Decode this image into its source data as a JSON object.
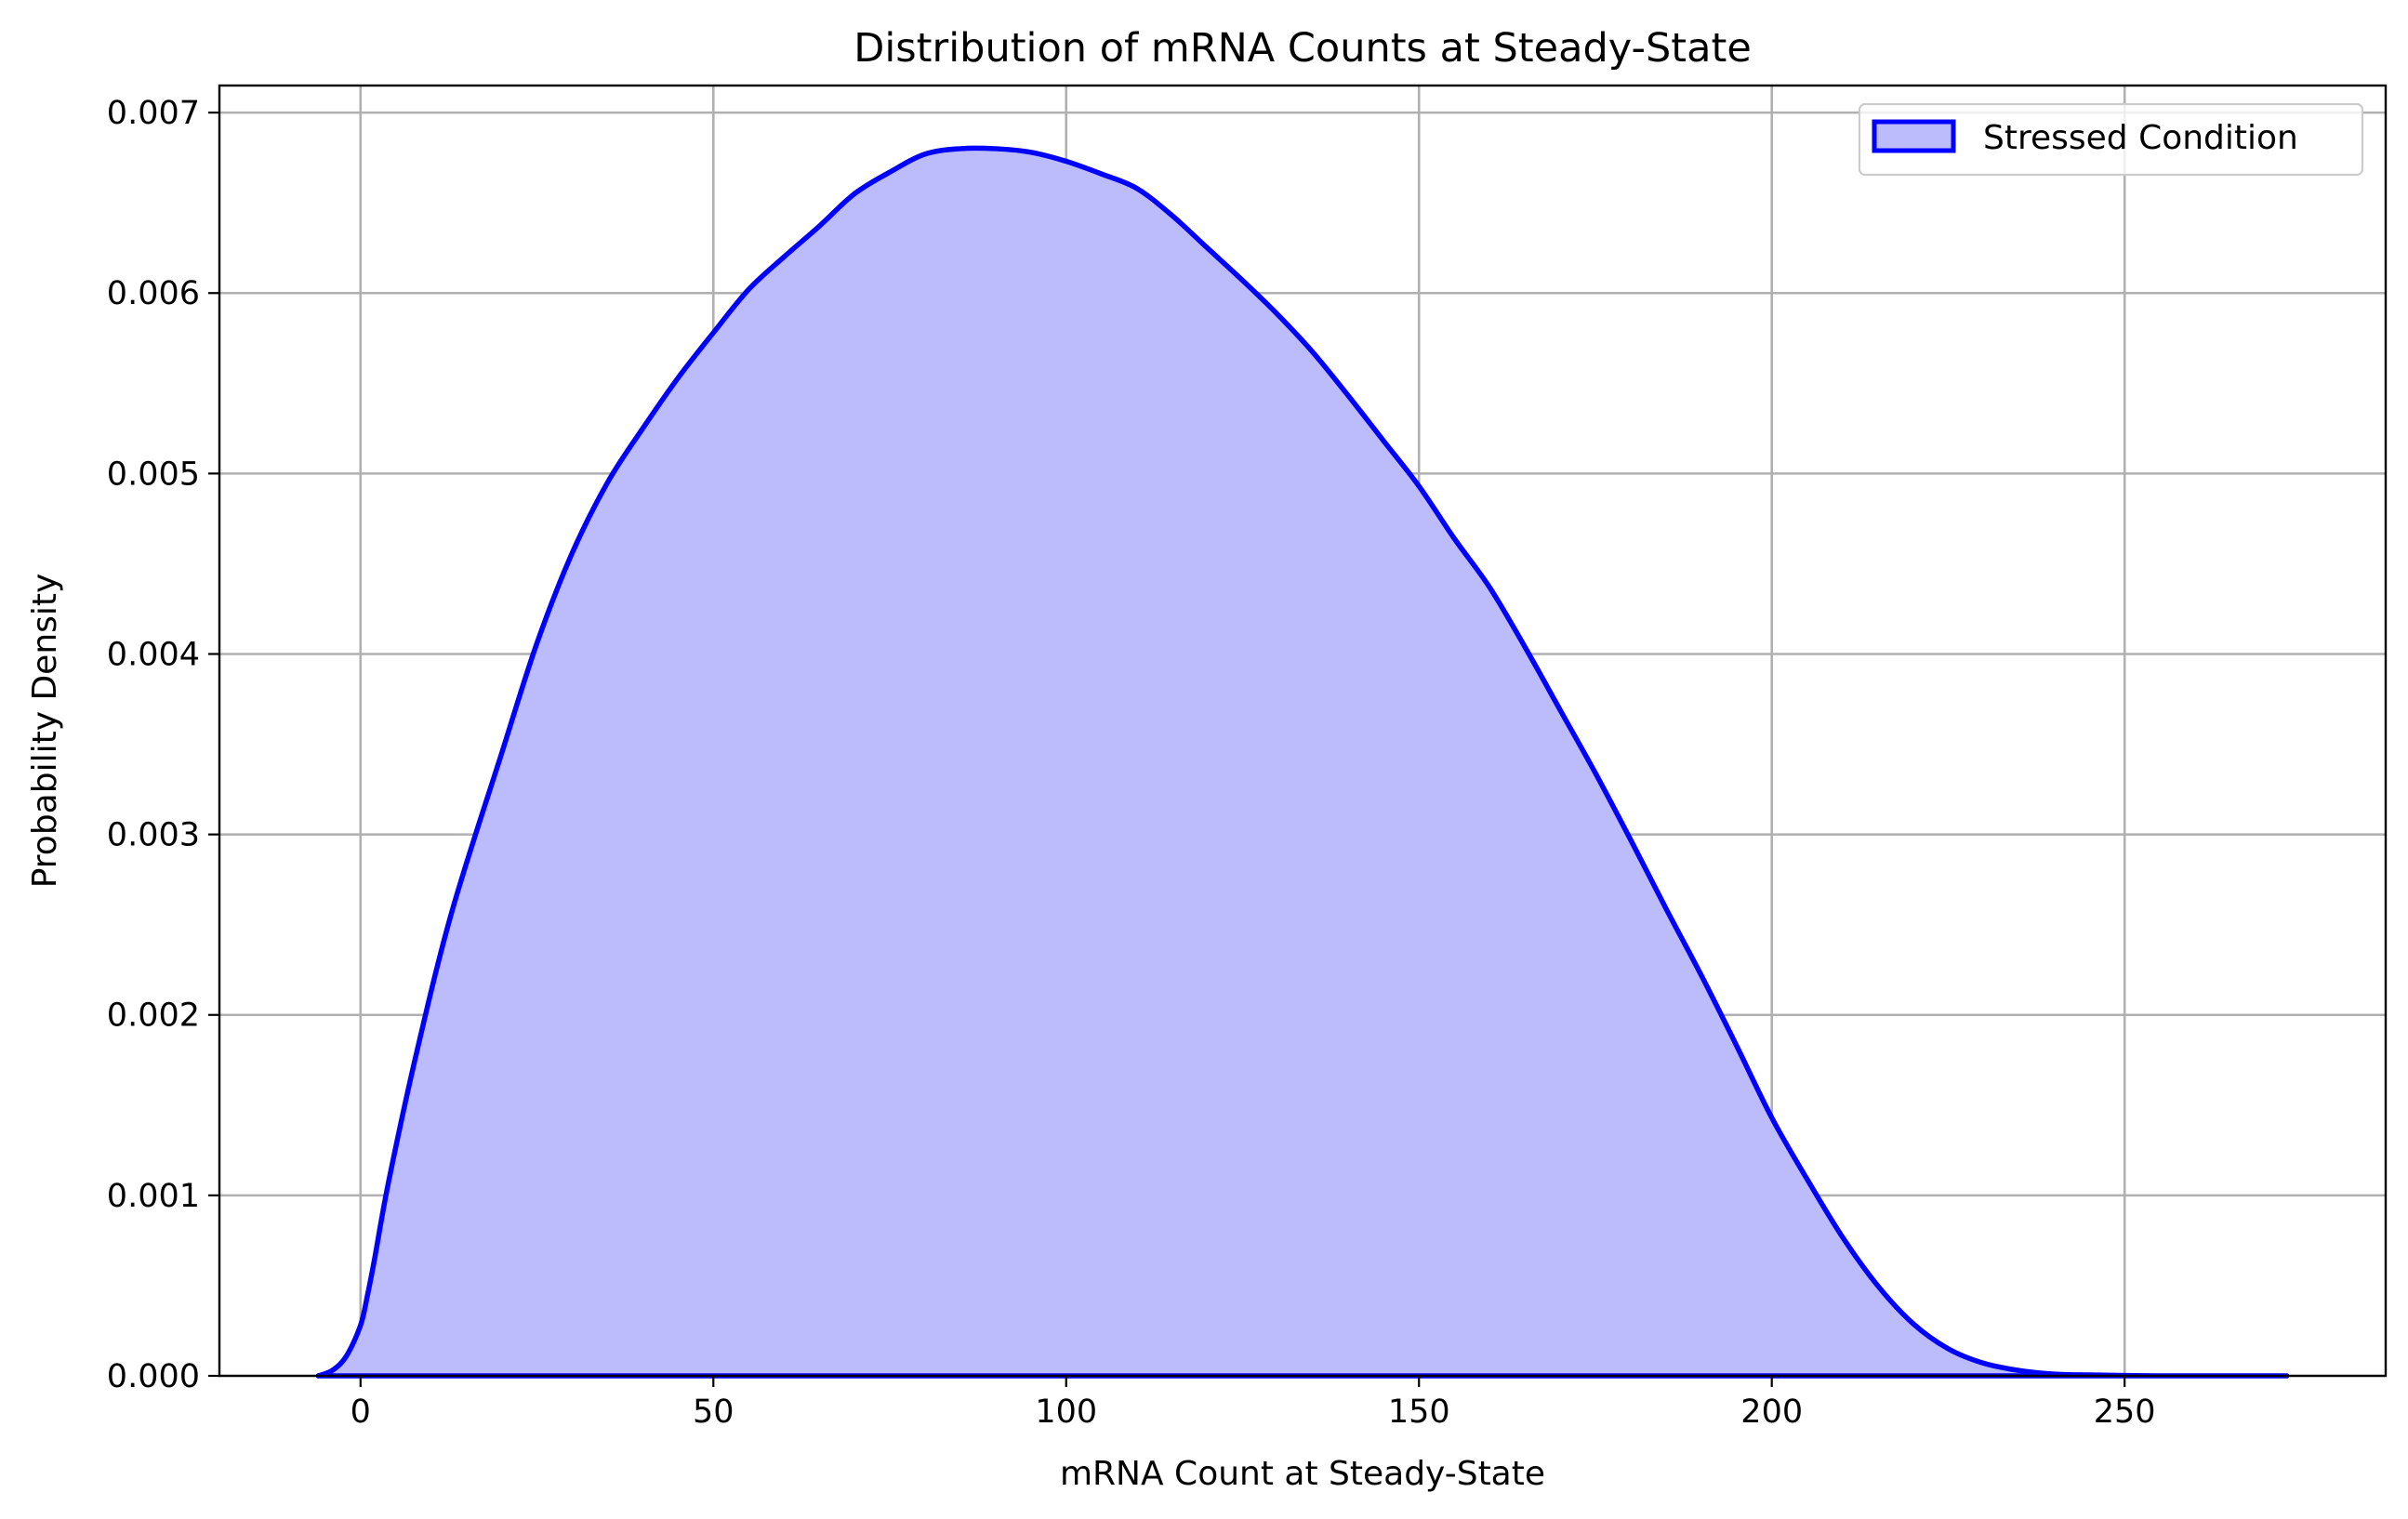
{
  "chart_data": {
    "type": "area",
    "title": "Distribution of mRNA Counts at Steady-State",
    "xlabel": "mRNA Count at Steady-State",
    "ylabel": "Probability Density",
    "xlim": [
      -20,
      287
    ],
    "ylim": [
      0,
      0.00715
    ],
    "xticks": [
      0,
      50,
      100,
      150,
      200,
      250
    ],
    "xtick_labels": [
      "0",
      "50",
      "100",
      "150",
      "200",
      "250"
    ],
    "yticks": [
      0,
      0.001,
      0.002,
      0.003,
      0.004,
      0.005,
      0.006,
      0.007
    ],
    "ytick_labels": [
      "0.000",
      "0.001",
      "0.002",
      "0.003",
      "0.004",
      "0.005",
      "0.006",
      "0.007"
    ],
    "grid": true,
    "legend_position": "top-right",
    "series": [
      {
        "name": "Stressed Condition",
        "line_color": "#0000ff",
        "fill_color": "#bcbcfd",
        "x": [
          -6,
          -4,
          -2,
          0,
          1,
          2,
          4,
          8,
          13,
          20,
          25,
          30,
          35,
          40,
          45,
          50,
          55,
          60,
          65,
          70,
          75,
          80,
          85,
          90,
          95,
          100,
          105,
          110,
          115,
          120,
          125,
          130,
          135,
          140,
          145,
          150,
          155,
          160,
          165,
          170,
          175,
          180,
          185,
          190,
          195,
          200,
          205,
          210,
          215,
          220,
          225,
          230,
          235,
          240,
          245,
          250,
          255,
          260,
          265,
          273
        ],
        "y": [
          0,
          3e-05,
          0.00011,
          0.00028,
          0.00045,
          0.00065,
          0.00108,
          0.0018,
          0.00258,
          0.00345,
          0.00406,
          0.00456,
          0.00495,
          0.00525,
          0.00553,
          0.00578,
          0.00602,
          0.0062,
          0.00637,
          0.00655,
          0.00667,
          0.00677,
          0.0068,
          0.0068,
          0.00678,
          0.00673,
          0.00666,
          0.00658,
          0.00643,
          0.00625,
          0.00607,
          0.00588,
          0.00567,
          0.00543,
          0.00518,
          0.00493,
          0.00464,
          0.00437,
          0.00404,
          0.00369,
          0.00334,
          0.00297,
          0.00259,
          0.00222,
          0.00183,
          0.00143,
          0.00109,
          0.00077,
          0.0005,
          0.00029,
          0.00015,
          7e-05,
          3e-05,
          1e-05,
          5e-06,
          2e-06,
          0,
          0,
          0,
          0
        ]
      }
    ]
  }
}
